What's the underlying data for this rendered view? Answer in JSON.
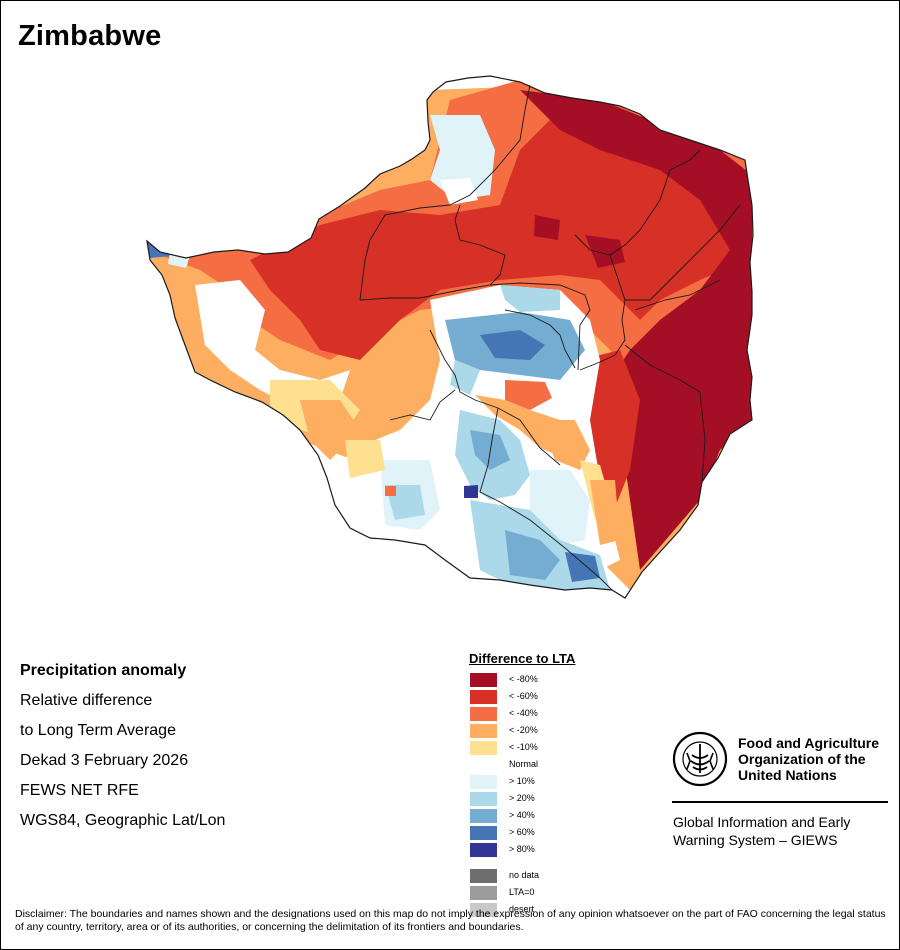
{
  "map": {
    "title": "Zimbabwe",
    "colors": {
      "border": "#1a1a1a",
      "frame": "#000000"
    }
  },
  "info": {
    "heading": "Precipitation anomaly",
    "line1": "Relative difference",
    "line2": "to Long Term Average",
    "period": "Dekad 3 February 2026",
    "source": "FEWS NET RFE",
    "projection": "WGS84, Geographic Lat/Lon"
  },
  "legend": {
    "title": "Difference to LTA",
    "classes": [
      {
        "label": "< -80%",
        "color": "#a50f26"
      },
      {
        "label": "< -60%",
        "color": "#d73027"
      },
      {
        "label": "< -40%",
        "color": "#f46d43"
      },
      {
        "label": "< -20%",
        "color": "#fdae61"
      },
      {
        "label": "< -10%",
        "color": "#fee090"
      },
      {
        "label": "Normal",
        "color": "#ffffff"
      },
      {
        "label": "> 10%",
        "color": "#e0f3f8"
      },
      {
        "label": "> 20%",
        "color": "#abd9e9"
      },
      {
        "label": "> 40%",
        "color": "#74add1"
      },
      {
        "label": "> 60%",
        "color": "#4575b4"
      },
      {
        "label": "> 80%",
        "color": "#313695"
      }
    ],
    "extras": [
      {
        "label": "no data",
        "color": "#6e6e6e"
      },
      {
        "label": "LTA=0",
        "color": "#9c9c9c"
      },
      {
        "label": "desert",
        "color": "#c8c8c8"
      }
    ]
  },
  "fao": {
    "name_line1": "Food and Agriculture",
    "name_line2": "Organization of the",
    "name_line3": "United Nations",
    "giews_line1": "Global Information and Early",
    "giews_line2": "Warning System – GIEWS"
  },
  "disclaimer": "Disclaimer: The boundaries and names shown and the designations used on this map do not imply the expression of any opinion whatsoever on the part of FAO concerning the legal status of any country, territory, area or of its authorities, or concerning the delimitation of its frontiers and boundaries."
}
